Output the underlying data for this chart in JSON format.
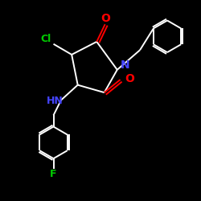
{
  "bg_color": "#000000",
  "bond_color": "#ffffff",
  "O_color": "#ff0000",
  "N_color": "#4444ff",
  "NH_color": "#4444ff",
  "Cl_color": "#00cc00",
  "F_color": "#00cc00",
  "lw": 1.4,
  "figsize": [
    2.5,
    2.5
  ],
  "dpi": 100,
  "xlim": [
    -1.3,
    1.3
  ],
  "ylim": [
    -1.55,
    1.1
  ]
}
